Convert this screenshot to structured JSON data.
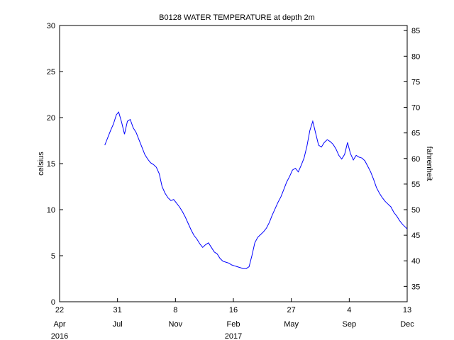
{
  "chart_data": {
    "type": "line",
    "title": "B0128 WATER TEMPERATURE at depth 2m",
    "ylabel": "celsius",
    "ylabel_right": "fahrenheit",
    "xlabel": "",
    "grid": false,
    "line_color": "#0000ff",
    "xlim": [
      "2016-04-22",
      "2017-12-13"
    ],
    "ylim": [
      0,
      30
    ],
    "ylim_right": [
      32,
      86
    ],
    "x_ticks": [
      {
        "date": "2016-04-22",
        "day": "22",
        "month": "Apr"
      },
      {
        "date": "2016-07-31",
        "day": "31",
        "month": "Jul"
      },
      {
        "date": "2016-11-08",
        "day": "8",
        "month": "Nov"
      },
      {
        "date": "2017-02-16",
        "day": "16",
        "month": "Feb"
      },
      {
        "date": "2017-05-27",
        "day": "27",
        "month": "May"
      },
      {
        "date": "2017-09-04",
        "day": "4",
        "month": "Sep"
      },
      {
        "date": "2017-12-13",
        "day": "13",
        "month": "Dec"
      }
    ],
    "year_labels": [
      {
        "date": "2016-04-22",
        "label": "2016"
      },
      {
        "date": "2017-02-16",
        "label": "2017"
      }
    ],
    "y_ticks": [
      0,
      5,
      10,
      15,
      20,
      25,
      30
    ],
    "y_ticks_right": [
      35,
      40,
      45,
      50,
      55,
      60,
      65,
      70,
      75,
      80,
      85
    ],
    "series": [
      {
        "x": [
          "2016-07-09",
          "2016-07-14",
          "2016-07-19",
          "2016-07-24",
          "2016-07-29",
          "2016-08-02",
          "2016-08-07",
          "2016-08-12",
          "2016-08-17",
          "2016-08-22",
          "2016-08-27",
          "2016-09-01",
          "2016-09-06",
          "2016-09-11",
          "2016-09-16",
          "2016-09-21",
          "2016-09-26",
          "2016-10-01",
          "2016-10-06",
          "2016-10-11",
          "2016-10-16",
          "2016-10-21",
          "2016-10-26",
          "2016-10-31",
          "2016-11-05",
          "2016-11-10",
          "2016-11-15",
          "2016-11-20",
          "2016-11-25",
          "2016-11-30",
          "2016-12-05",
          "2016-12-10",
          "2016-12-15",
          "2016-12-20",
          "2016-12-25",
          "2016-12-30",
          "2017-01-04",
          "2017-01-09",
          "2017-01-14",
          "2017-01-19",
          "2017-01-24",
          "2017-01-29",
          "2017-02-03",
          "2017-02-08",
          "2017-02-13",
          "2017-02-18",
          "2017-02-23",
          "2017-02-28",
          "2017-03-05",
          "2017-03-10",
          "2017-03-15",
          "2017-03-20",
          "2017-03-25",
          "2017-03-30",
          "2017-04-04",
          "2017-04-09",
          "2017-04-14",
          "2017-04-19",
          "2017-04-24",
          "2017-04-29",
          "2017-05-04",
          "2017-05-09",
          "2017-05-14",
          "2017-05-19",
          "2017-05-24",
          "2017-05-29",
          "2017-06-03",
          "2017-06-08",
          "2017-06-13",
          "2017-06-18",
          "2017-06-23",
          "2017-06-28",
          "2017-07-03",
          "2017-07-08",
          "2017-07-13",
          "2017-07-18",
          "2017-07-23",
          "2017-07-28",
          "2017-08-02",
          "2017-08-07",
          "2017-08-12",
          "2017-08-17",
          "2017-08-22",
          "2017-08-27",
          "2017-09-01",
          "2017-09-06",
          "2017-09-11",
          "2017-09-16",
          "2017-09-21",
          "2017-09-26",
          "2017-10-01",
          "2017-10-06",
          "2017-10-11",
          "2017-10-16",
          "2017-10-21",
          "2017-10-26",
          "2017-10-31",
          "2017-11-05",
          "2017-11-10",
          "2017-11-15",
          "2017-11-20",
          "2017-11-25",
          "2017-11-30",
          "2017-12-05",
          "2017-12-10",
          "2017-12-13"
        ],
        "y": [
          17.0,
          17.8,
          18.6,
          19.3,
          20.3,
          20.6,
          19.5,
          18.2,
          19.6,
          19.8,
          18.9,
          18.4,
          17.6,
          16.8,
          16.0,
          15.5,
          15.1,
          14.9,
          14.6,
          13.9,
          12.5,
          11.8,
          11.3,
          11.0,
          11.1,
          10.7,
          10.3,
          9.8,
          9.2,
          8.5,
          7.8,
          7.2,
          6.8,
          6.3,
          5.9,
          6.2,
          6.4,
          5.9,
          5.4,
          5.2,
          4.7,
          4.4,
          4.3,
          4.2,
          4.0,
          3.9,
          3.8,
          3.7,
          3.6,
          3.6,
          3.8,
          5.0,
          6.4,
          7.0,
          7.3,
          7.6,
          8.0,
          8.6,
          9.4,
          10.1,
          10.8,
          11.4,
          12.2,
          13.0,
          13.6,
          14.3,
          14.5,
          14.1,
          14.8,
          15.6,
          16.9,
          18.6,
          19.6,
          18.3,
          17.0,
          16.8,
          17.3,
          17.6,
          17.4,
          17.1,
          16.6,
          15.9,
          15.5,
          16.0,
          17.3,
          16.1,
          15.4,
          15.9,
          15.7,
          15.6,
          15.3,
          14.7,
          14.1,
          13.3,
          12.4,
          11.8,
          11.3,
          10.9,
          10.6,
          10.3,
          9.7,
          9.3,
          8.8,
          8.4,
          8.1,
          7.9
        ]
      }
    ]
  }
}
